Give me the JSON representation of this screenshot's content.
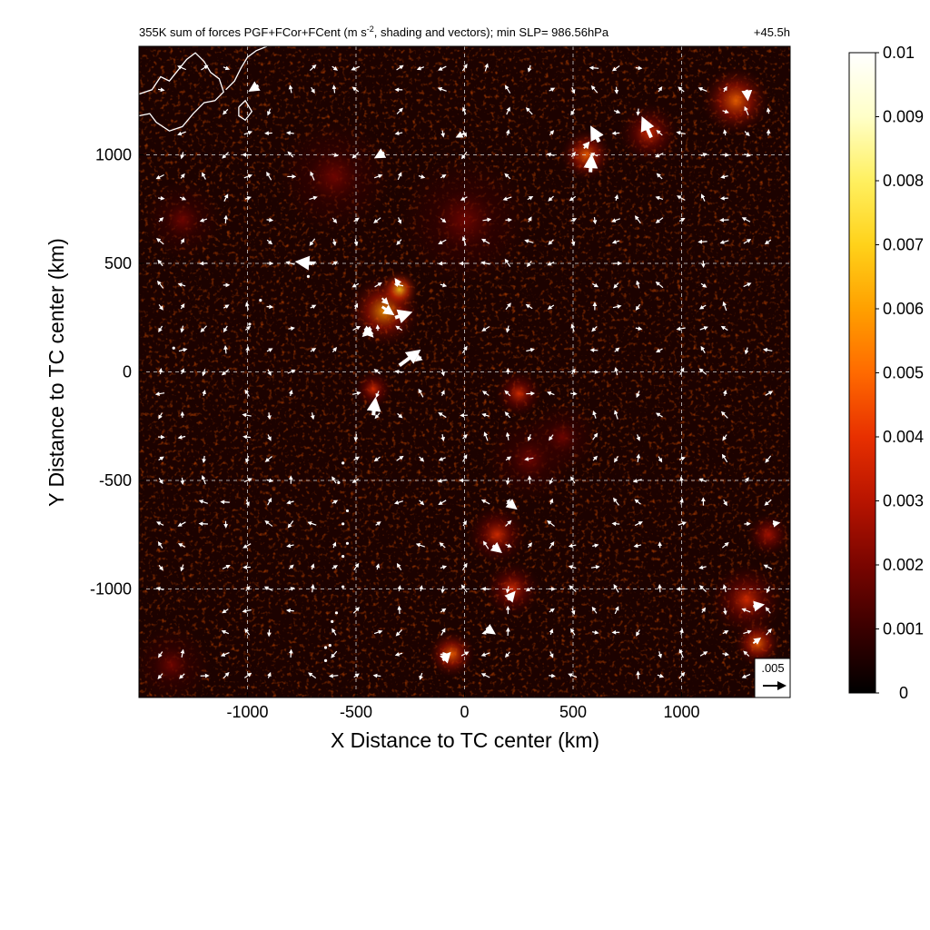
{
  "chart_data": {
    "type": "heatmap",
    "title": "355K sum of forces PGF+FCor+FCent (m s",
    "title_superscript": "-2",
    "title_rest": ", shading and vectors); min SLP= 986.56hPa",
    "time_label": "+45.5h",
    "xlabel": "X Distance to TC center (km)",
    "ylabel": "Y Distance to TC center (km)",
    "xlim": [
      -1500,
      1500
    ],
    "ylim": [
      -1500,
      1500
    ],
    "xticks": [
      -1000,
      -500,
      0,
      500,
      1000
    ],
    "yticks": [
      -1000,
      -500,
      0,
      500,
      1000
    ],
    "xtick_labels": [
      "-1000",
      "-500",
      "0",
      "500",
      "1000"
    ],
    "ytick_labels": [
      "-1000",
      "-500",
      "0",
      "500",
      "1000"
    ],
    "grid": true,
    "colorbar": {
      "min": 0,
      "max": 0.01,
      "ticks": [
        0,
        0.001,
        0.002,
        0.003,
        0.004,
        0.005,
        0.006,
        0.007,
        0.008,
        0.009,
        0.01
      ],
      "tick_labels": [
        "0",
        "0.001",
        "0.002",
        "0.003",
        "0.004",
        "0.005",
        "0.006",
        "0.007",
        "0.008",
        "0.009",
        "0.01"
      ],
      "colors": [
        "#000000",
        "#3a0000",
        "#7a0500",
        "#b81400",
        "#e83000",
        "#ff6a00",
        "#ffa000",
        "#ffd21a",
        "#fff060",
        "#ffffc8",
        "#ffffff"
      ]
    },
    "reference_vector": {
      "label": ".005",
      "magnitude": 0.005
    },
    "hotspots": [
      {
        "x": -370,
        "y": 280,
        "r": 170,
        "intensity": 0.006
      },
      {
        "x": -300,
        "y": 380,
        "r": 90,
        "intensity": 0.007
      },
      {
        "x": -420,
        "y": -80,
        "r": 90,
        "intensity": 0.004
      },
      {
        "x": 560,
        "y": 1000,
        "r": 120,
        "intensity": 0.005
      },
      {
        "x": 850,
        "y": 1100,
        "r": 140,
        "intensity": 0.004
      },
      {
        "x": 1250,
        "y": 1250,
        "r": 160,
        "intensity": 0.005
      },
      {
        "x": 250,
        "y": -100,
        "r": 110,
        "intensity": 0.004
      },
      {
        "x": 150,
        "y": -750,
        "r": 140,
        "intensity": 0.004
      },
      {
        "x": 220,
        "y": -1000,
        "r": 130,
        "intensity": 0.004
      },
      {
        "x": -60,
        "y": -1300,
        "r": 110,
        "intensity": 0.005
      },
      {
        "x": 1300,
        "y": -1050,
        "r": 170,
        "intensity": 0.004
      },
      {
        "x": 1350,
        "y": -1250,
        "r": 110,
        "intensity": 0.005
      },
      {
        "x": 1400,
        "y": -750,
        "r": 100,
        "intensity": 0.003
      },
      {
        "x": -600,
        "y": 900,
        "r": 260,
        "intensity": 0.002
      },
      {
        "x": -1300,
        "y": 700,
        "r": 180,
        "intensity": 0.002
      },
      {
        "x": 0,
        "y": 700,
        "r": 300,
        "intensity": 0.0015
      },
      {
        "x": 300,
        "y": -400,
        "r": 200,
        "intensity": 0.002
      },
      {
        "x": -1350,
        "y": -1350,
        "r": 180,
        "intensity": 0.002
      },
      {
        "x": 450,
        "y": -300,
        "r": 160,
        "intensity": 0.002
      }
    ],
    "vectors": [
      {
        "x": -300,
        "y": 30,
        "u": 0.0042,
        "v": 0.0031
      },
      {
        "x": -420,
        "y": -200,
        "u": 0.0004,
        "v": 0.0032
      },
      {
        "x": -320,
        "y": 250,
        "u": 0.003,
        "v": 0.001
      },
      {
        "x": -380,
        "y": 300,
        "u": 0.0022,
        "v": -0.0015
      },
      {
        "x": -460,
        "y": 200,
        "u": 0.0015,
        "v": -0.0015
      },
      {
        "x": -430,
        "y": 200,
        "u": -0.0015,
        "v": -0.0014
      },
      {
        "x": -380,
        "y": 340,
        "u": 0.0012,
        "v": -0.0012
      },
      {
        "x": -700,
        "y": 500,
        "u": -0.003,
        "v": 0.0003
      },
      {
        "x": 580,
        "y": 920,
        "u": 0.0002,
        "v": 0.0032
      },
      {
        "x": 620,
        "y": 1060,
        "u": -0.0015,
        "v": 0.0028
      },
      {
        "x": 860,
        "y": 1080,
        "u": -0.0018,
        "v": 0.004
      },
      {
        "x": 550,
        "y": 1030,
        "u": 0.001,
        "v": 0.0012
      },
      {
        "x": 1300,
        "y": 1300,
        "u": 0.0002,
        "v": -0.0018
      },
      {
        "x": 1330,
        "y": -1080,
        "u": 0.0018,
        "v": 0.0003
      },
      {
        "x": 1330,
        "y": -1250,
        "u": 0.0014,
        "v": 0.001
      },
      {
        "x": 130,
        "y": -800,
        "u": 0.0015,
        "v": -0.0012
      },
      {
        "x": 200,
        "y": -600,
        "u": 0.0015,
        "v": -0.0012
      },
      {
        "x": 200,
        "y": -1050,
        "u": 0.0012,
        "v": 0.0014
      },
      {
        "x": 100,
        "y": -1180,
        "u": 0.0015,
        "v": -0.001
      },
      {
        "x": -100,
        "y": -1330,
        "u": 0.0013,
        "v": 0.0014
      },
      {
        "x": 1420,
        "y": -700,
        "u": 0.0012,
        "v": 0.0002
      },
      {
        "x": -950,
        "y": 1320,
        "u": -0.0016,
        "v": -0.001
      },
      {
        "x": 0,
        "y": 1100,
        "u": -0.0016,
        "v": -0.0008
      },
      {
        "x": -370,
        "y": 1010,
        "u": -0.0016,
        "v": -0.0009
      },
      {
        "x": -300,
        "y": 400,
        "u": -0.0008,
        "v": 0.0012
      },
      {
        "x": -200,
        "y": 70,
        "u": -0.001,
        "v": -0.0008
      }
    ],
    "coastline": [
      [
        [
          -1500,
          1280
        ],
        [
          -1440,
          1300
        ],
        [
          -1400,
          1360
        ],
        [
          -1360,
          1340
        ],
        [
          -1320,
          1390
        ],
        [
          -1280,
          1440
        ],
        [
          -1240,
          1470
        ],
        [
          -1200,
          1430
        ],
        [
          -1170,
          1380
        ],
        [
          -1130,
          1350
        ],
        [
          -1110,
          1290
        ],
        [
          -1150,
          1250
        ],
        [
          -1200,
          1240
        ],
        [
          -1250,
          1190
        ],
        [
          -1300,
          1130
        ],
        [
          -1360,
          1110
        ],
        [
          -1420,
          1150
        ],
        [
          -1450,
          1190
        ],
        [
          -1500,
          1180
        ]
      ],
      [
        [
          -1100,
          1300
        ],
        [
          -1060,
          1340
        ],
        [
          -1030,
          1400
        ],
        [
          -1000,
          1450
        ],
        [
          -960,
          1480
        ],
        [
          -910,
          1500
        ]
      ],
      [
        [
          -1040,
          1220
        ],
        [
          -1010,
          1250
        ],
        [
          -980,
          1200
        ],
        [
          -1010,
          1160
        ],
        [
          -1040,
          1180
        ],
        [
          -1040,
          1220
        ]
      ]
    ],
    "islands": [
      [
        -560,
        -420
      ],
      [
        -580,
        -510
      ],
      [
        -540,
        -640
      ],
      [
        -560,
        -700
      ],
      [
        -540,
        -790
      ],
      [
        -560,
        -850
      ],
      [
        -560,
        -990
      ],
      [
        -590,
        -1110
      ],
      [
        -620,
        -1260
      ],
      [
        -640,
        -1330
      ],
      [
        -640,
        -1270
      ],
      [
        -610,
        -1150
      ],
      [
        -720,
        440
      ],
      [
        -940,
        330
      ],
      [
        -990,
        220
      ],
      [
        -1340,
        110
      ]
    ]
  }
}
